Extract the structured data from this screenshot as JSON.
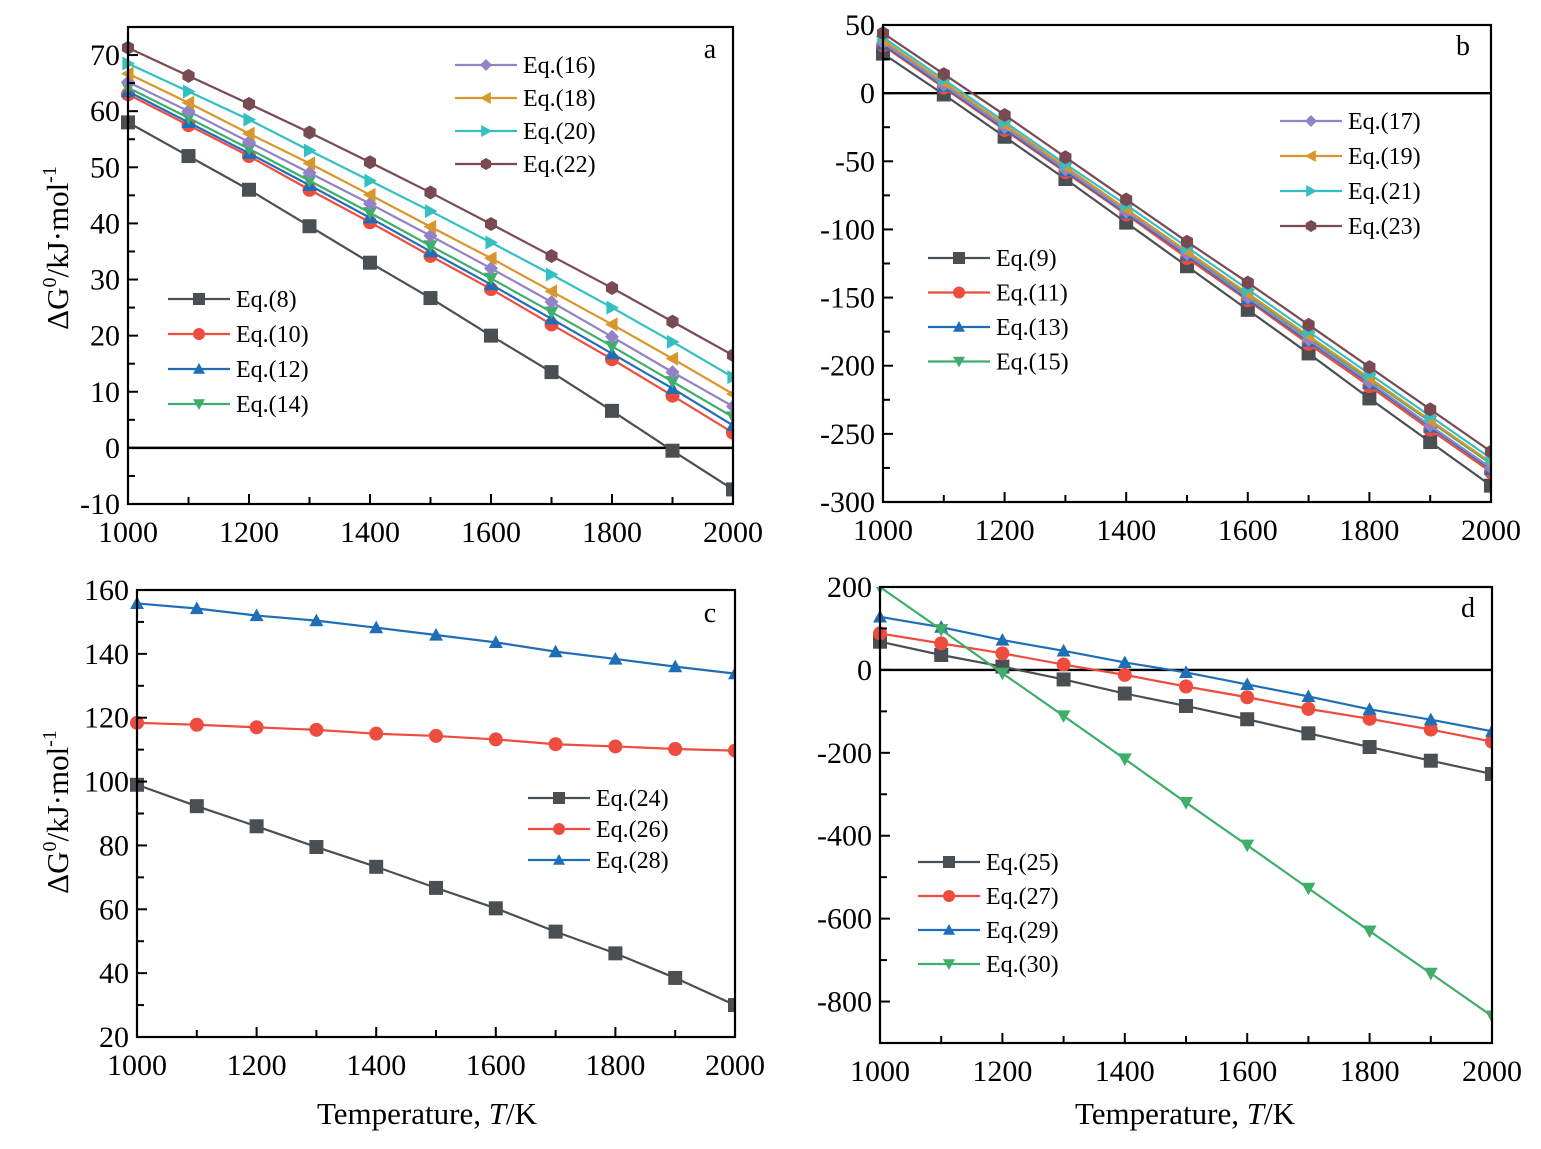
{
  "figure": {
    "y_axis_title": {
      "prefix": "ΔG",
      "sup": "0",
      "unit": "/kJ·mol",
      "unit_sup": "-1"
    },
    "x_axis_title": {
      "prefix": "Temperature, ",
      "italic": "T",
      "suffix": "/K"
    }
  },
  "colors": {
    "gray": "#4a4f53",
    "red": "#ee4c3e",
    "blue": "#1f6fb8",
    "green": "#3fae6a",
    "purple": "#9382c6",
    "orange": "#d8962b",
    "cyan": "#34bfc3",
    "brown": "#7a4a52",
    "axis": "#000000"
  },
  "chart_data": [
    {
      "type": "line",
      "panel": "a",
      "title": "",
      "xlabel": "",
      "ylabel": "ΔG0/kJ·mol-1",
      "x": [
        1000,
        1100,
        1200,
        1300,
        1400,
        1500,
        1600,
        1700,
        1800,
        1900,
        2000
      ],
      "xlim": [
        1000,
        2000
      ],
      "ylim": [
        -10,
        75
      ],
      "xticks": [
        1000,
        1200,
        1400,
        1600,
        1800,
        2000
      ],
      "yticks": [
        -10,
        0,
        10,
        20,
        30,
        40,
        50,
        60,
        70
      ],
      "zero_line": true,
      "grid": false,
      "legends": [
        {
          "placement": "top-right",
          "entries": [
            "Eq.(16)",
            "Eq.(18)",
            "Eq.(20)",
            "Eq.(22)"
          ]
        },
        {
          "placement": "bottom-left",
          "entries": [
            "Eq.(8)",
            "Eq.(10)",
            "Eq.(12)",
            "Eq.(14)"
          ]
        }
      ],
      "series": [
        {
          "name": "Eq.(8)",
          "color": "gray",
          "marker": "square",
          "values": [
            58,
            52,
            46,
            39.5,
            33,
            26.7,
            20,
            13.5,
            6.6,
            -0.5,
            -7.4
          ]
        },
        {
          "name": "Eq.(10)",
          "color": "red",
          "marker": "circle",
          "values": [
            63,
            57.5,
            52,
            46,
            40.2,
            34.2,
            28.3,
            22,
            15.8,
            9.3,
            2.7
          ]
        },
        {
          "name": "Eq.(12)",
          "color": "blue",
          "marker": "triangle-up",
          "values": [
            63.5,
            58,
            52.5,
            46.8,
            41,
            35,
            29.1,
            23,
            16.8,
            10.6,
            4
          ]
        },
        {
          "name": "Eq.(14)",
          "color": "green",
          "marker": "triangle-down",
          "values": [
            64.2,
            58.8,
            53.3,
            47.6,
            41.9,
            36,
            30.2,
            24.2,
            18.1,
            11.8,
            5.5
          ]
        },
        {
          "name": "Eq.(16)",
          "color": "purple",
          "marker": "diamond",
          "values": [
            65.2,
            60,
            54.5,
            49,
            43.5,
            37.8,
            32,
            26,
            19.8,
            13.5,
            7.4
          ]
        },
        {
          "name": "Eq.(18)",
          "color": "orange",
          "marker": "triangle-left",
          "values": [
            66.7,
            61.5,
            56,
            50.7,
            45.1,
            39.4,
            33.8,
            27.9,
            22,
            15.9,
            9.6
          ]
        },
        {
          "name": "Eq.(20)",
          "color": "cyan",
          "marker": "triangle-right",
          "values": [
            68.5,
            63.5,
            58.5,
            53,
            47.6,
            42.2,
            36.6,
            30.9,
            25,
            18.9,
            12.6
          ]
        },
        {
          "name": "Eq.(22)",
          "color": "brown",
          "marker": "hexagon",
          "values": [
            71.3,
            66.3,
            61.3,
            56.2,
            50.9,
            45.5,
            39.9,
            34.2,
            28.5,
            22.5,
            16.5
          ]
        }
      ]
    },
    {
      "type": "line",
      "panel": "b",
      "title": "",
      "xlabel": "",
      "ylabel": "",
      "x": [
        1000,
        1100,
        1200,
        1300,
        1400,
        1500,
        1600,
        1700,
        1800,
        1900,
        2000
      ],
      "xlim": [
        1000,
        2000
      ],
      "ylim": [
        -300,
        50
      ],
      "xticks": [
        1000,
        1200,
        1400,
        1600,
        1800,
        2000
      ],
      "yticks": [
        -300,
        -250,
        -200,
        -150,
        -100,
        -50,
        0,
        50
      ],
      "zero_line": true,
      "grid": false,
      "legends": [
        {
          "placement": "top-right",
          "entries": [
            "Eq.(17)",
            "Eq.(19)",
            "Eq.(21)",
            "Eq.(23)"
          ]
        },
        {
          "placement": "center-left",
          "entries": [
            "Eq.(9)",
            "Eq.(11)",
            "Eq.(13)",
            "Eq.(15)"
          ]
        }
      ],
      "series": [
        {
          "name": "Eq.(9)",
          "color": "gray",
          "marker": "square",
          "values": [
            29,
            -1,
            -32,
            -63,
            -95,
            -127,
            -159,
            -191,
            -224,
            -256,
            -288
          ]
        },
        {
          "name": "Eq.(11)",
          "color": "red",
          "marker": "circle",
          "values": [
            35,
            4,
            -27,
            -58,
            -89,
            -121,
            -152,
            -184,
            -215,
            -247,
            -278
          ]
        },
        {
          "name": "Eq.(13)",
          "color": "blue",
          "marker": "triangle-up",
          "values": [
            36,
            5,
            -26,
            -57,
            -88,
            -119,
            -151,
            -182,
            -213,
            -245,
            -276
          ]
        },
        {
          "name": "Eq.(15)",
          "color": "green",
          "marker": "triangle-down",
          "values": [
            38,
            7,
            -24,
            -55,
            -86,
            -117,
            -148,
            -179,
            -210,
            -241,
            -272
          ]
        },
        {
          "name": "Eq.(17)",
          "color": "purple",
          "marker": "diamond",
          "values": [
            37,
            6,
            -25,
            -56,
            -87,
            -118,
            -150,
            -181,
            -212,
            -244,
            -275
          ]
        },
        {
          "name": "Eq.(19)",
          "color": "orange",
          "marker": "triangle-left",
          "values": [
            39,
            8,
            -23,
            -54,
            -85,
            -116,
            -147,
            -178,
            -209,
            -240,
            -271
          ]
        },
        {
          "name": "Eq.(21)",
          "color": "cyan",
          "marker": "triangle-right",
          "values": [
            41,
            10,
            -21,
            -52,
            -82,
            -113,
            -144,
            -175,
            -206,
            -237,
            -268
          ]
        },
        {
          "name": "Eq.(23)",
          "color": "brown",
          "marker": "hexagon",
          "values": [
            44,
            14,
            -16,
            -47,
            -78,
            -109,
            -139,
            -170,
            -201,
            -232,
            -263
          ]
        }
      ]
    },
    {
      "type": "line",
      "panel": "c",
      "title": "",
      "xlabel": "Temperature, T/K",
      "ylabel": "ΔG0/kJ·mol-1",
      "x": [
        1000,
        1100,
        1200,
        1300,
        1400,
        1500,
        1600,
        1700,
        1800,
        1900,
        2000
      ],
      "xlim": [
        1000,
        2000
      ],
      "ylim": [
        20,
        160
      ],
      "xticks": [
        1000,
        1200,
        1400,
        1600,
        1800,
        2000
      ],
      "yticks": [
        20,
        40,
        60,
        80,
        100,
        120,
        140,
        160
      ],
      "zero_line": false,
      "grid": false,
      "legends": [
        {
          "placement": "center-right",
          "entries": [
            "Eq.(24)",
            "Eq.(26)",
            "Eq.(28)"
          ]
        }
      ],
      "series": [
        {
          "name": "Eq.(24)",
          "color": "gray",
          "marker": "square",
          "values": [
            99,
            92.3,
            86,
            79.5,
            73.3,
            66.7,
            60.3,
            53,
            46.2,
            38.5,
            30
          ]
        },
        {
          "name": "Eq.(26)",
          "color": "red",
          "marker": "circle",
          "values": [
            118.4,
            117.8,
            117,
            116.2,
            115,
            114.3,
            113.2,
            111.7,
            111,
            110.2,
            109.7
          ]
        },
        {
          "name": "Eq.(28)",
          "color": "blue",
          "marker": "triangle-up",
          "values": [
            155.8,
            154.2,
            152,
            150.4,
            148.2,
            145.9,
            143.6,
            140.7,
            138.4,
            136,
            133.8
          ]
        }
      ]
    },
    {
      "type": "line",
      "panel": "d",
      "title": "",
      "xlabel": "Temperature, T/K",
      "ylabel": "",
      "x": [
        1000,
        1100,
        1200,
        1300,
        1400,
        1500,
        1600,
        1700,
        1800,
        1900,
        2000
      ],
      "xlim": [
        1000,
        2000
      ],
      "ylim": [
        -900,
        200
      ],
      "xticks": [
        1000,
        1200,
        1400,
        1600,
        1800,
        2000
      ],
      "yticks": [
        -800,
        -600,
        -400,
        -200,
        0,
        200
      ],
      "zero_line": true,
      "grid": false,
      "legends": [
        {
          "placement": "bottom-left",
          "entries": [
            "Eq.(25)",
            "Eq.(27)",
            "Eq.(29)",
            "Eq.(30)"
          ]
        }
      ],
      "series": [
        {
          "name": "Eq.(25)",
          "color": "gray",
          "marker": "square",
          "values": [
            68,
            36,
            8,
            -23,
            -57,
            -87,
            -119,
            -153,
            -186,
            -219,
            -251
          ]
        },
        {
          "name": "Eq.(27)",
          "color": "red",
          "marker": "circle",
          "values": [
            88,
            64,
            40,
            13,
            -12,
            -40,
            -66,
            -94,
            -118,
            -144,
            -173
          ]
        },
        {
          "name": "Eq.(29)",
          "color": "blue",
          "marker": "triangle-up",
          "values": [
            128,
            103,
            72,
            46,
            18,
            -6,
            -35,
            -64,
            -95,
            -120,
            -148
          ]
        },
        {
          "name": "Eq.(30)",
          "color": "green",
          "marker": "triangle-down",
          "values": [
            200,
            97,
            -8,
            -111,
            -215,
            -320,
            -423,
            -527,
            -630,
            -732,
            -835
          ]
        }
      ]
    }
  ]
}
